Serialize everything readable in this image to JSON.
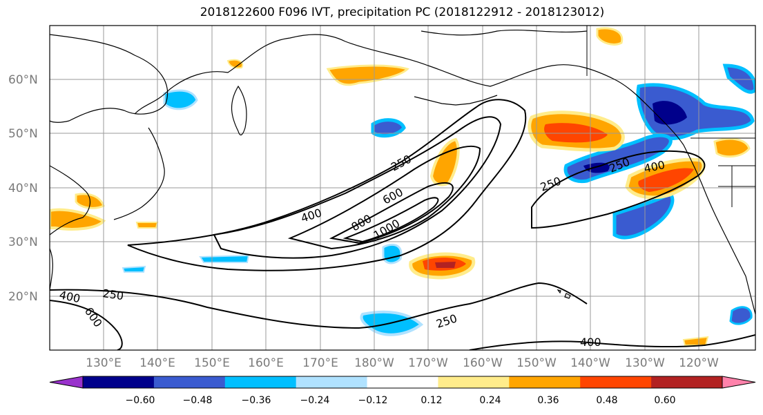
{
  "title": "2018122600 F096 IVT, precipitation PC (2018122912 - 2018123012)",
  "lat_labels": [
    "60°N",
    "50°N",
    "40°N",
    "30°N",
    "20°N"
  ],
  "lon_labels": [
    "130°E",
    "140°E",
    "150°E",
    "160°E",
    "170°E",
    "180°W",
    "170°W",
    "160°W",
    "150°W",
    "140°W",
    "130°W",
    "120°W"
  ],
  "contour_labels": [
    "250",
    "400",
    "600",
    "800",
    "1000",
    "250",
    "400",
    "600",
    "250",
    "250",
    "400",
    "250",
    "400"
  ],
  "colorbar": {
    "ticks": [
      "−0.60",
      "−0.48",
      "−0.36",
      "−0.24",
      "−0.12",
      "0.12",
      "0.24",
      "0.36",
      "0.48",
      "0.60"
    ],
    "colors": [
      "#9932cc",
      "#00008b",
      "#3a5bd0",
      "#00bfff",
      "#b0e2ff",
      "#ffffff",
      "#ffec8b",
      "#ffa500",
      "#ff4500",
      "#b22222",
      "#ff82ab"
    ]
  }
}
